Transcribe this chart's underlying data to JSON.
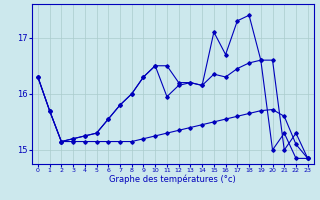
{
  "xlabel": "Graphe des températures (°c)",
  "xlim": [
    -0.5,
    23.5
  ],
  "ylim": [
    14.75,
    17.6
  ],
  "yticks": [
    15,
    16,
    17
  ],
  "xticks": [
    0,
    1,
    2,
    3,
    4,
    5,
    6,
    7,
    8,
    9,
    10,
    11,
    12,
    13,
    14,
    15,
    16,
    17,
    18,
    19,
    20,
    21,
    22,
    23
  ],
  "background_color": "#cce8ed",
  "line_color": "#0000bb",
  "grid_color": "#aacccc",
  "line1": [
    16.3,
    15.7,
    15.15,
    15.15,
    15.15,
    15.15,
    15.15,
    15.15,
    15.15,
    15.2,
    15.25,
    15.3,
    15.35,
    15.4,
    15.45,
    15.5,
    15.55,
    15.6,
    15.65,
    15.7,
    15.72,
    15.6,
    15.1,
    14.85
  ],
  "line2": [
    16.3,
    15.7,
    15.15,
    15.2,
    15.25,
    15.3,
    15.55,
    15.8,
    16.0,
    16.3,
    16.5,
    16.5,
    16.2,
    16.2,
    16.15,
    16.35,
    16.3,
    16.45,
    16.55,
    16.6,
    16.6,
    15.0,
    15.3,
    14.85
  ],
  "line3": [
    16.3,
    15.7,
    15.15,
    15.2,
    15.25,
    15.3,
    15.55,
    15.8,
    16.0,
    16.3,
    16.5,
    15.95,
    16.15,
    16.2,
    16.15,
    17.1,
    16.7,
    17.3,
    17.4,
    16.6,
    15.0,
    15.3,
    14.85,
    14.85
  ]
}
